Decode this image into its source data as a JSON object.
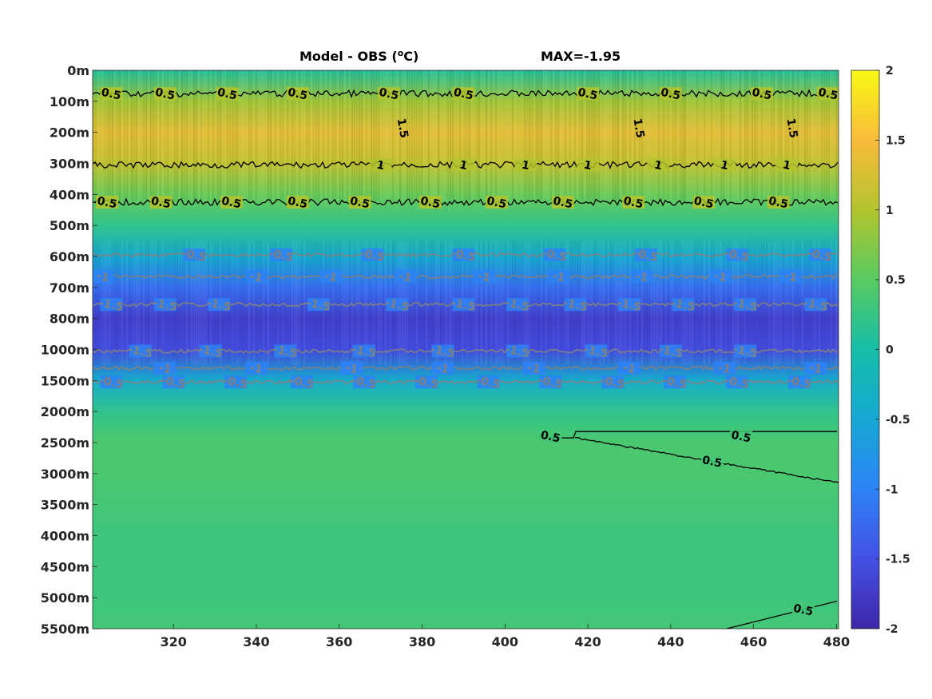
{
  "chart_data": {
    "type": "heatmap",
    "title": "Model - OBS",
    "title_unit_base": "(",
    "title_unit_sup": "o",
    "title_unit_end": "C)",
    "annotation": "MAX=-1.95",
    "x_ticks": [
      "320",
      "340",
      "360",
      "380",
      "400",
      "420",
      "440",
      "460",
      "480"
    ],
    "x_tick_values": [
      320,
      340,
      360,
      380,
      400,
      420,
      440,
      460,
      480
    ],
    "xlim": [
      300.5,
      480.5
    ],
    "y_ticks": [
      "0m",
      "100m",
      "200m",
      "300m",
      "400m",
      "500m",
      "600m",
      "700m",
      "800m",
      "1000m",
      "1500m",
      "2000m",
      "2500m",
      "3000m",
      "3500m",
      "4000m",
      "4500m",
      "5000m",
      "5500m"
    ],
    "colorbar": {
      "ticks": [
        "2",
        "1.5",
        "1",
        "0.5",
        "0",
        "-0.5",
        "-1",
        "-1.5",
        "-2"
      ],
      "tick_values": [
        2,
        1.5,
        1,
        0.5,
        0,
        -0.5,
        -1,
        -1.5,
        -2
      ],
      "range": [
        -2,
        2
      ],
      "colormap": "parula"
    },
    "depth_profile": [
      {
        "level": "0m",
        "value": 0.1
      },
      {
        "level": "100m",
        "value": 0.9
      },
      {
        "level": "200m",
        "value": 1.35
      },
      {
        "level": "300m",
        "value": 1.1
      },
      {
        "level": "400m",
        "value": 0.6
      },
      {
        "level": "500m",
        "value": 0.2
      },
      {
        "level": "600m",
        "value": -0.45
      },
      {
        "level": "700m",
        "value": -1.2
      },
      {
        "level": "800m",
        "value": -1.7
      },
      {
        "level": "1000m",
        "value": -1.55
      },
      {
        "level": "1500m",
        "value": -0.4
      },
      {
        "level": "2000m",
        "value": 0.2
      },
      {
        "level": "2500m",
        "value": 0.4
      },
      {
        "level": "3000m",
        "value": 0.4
      },
      {
        "level": "3500m",
        "value": 0.35
      },
      {
        "level": "4000m",
        "value": 0.3
      },
      {
        "level": "4500m",
        "value": 0.3
      },
      {
        "level": "5000m",
        "value": 0.3
      },
      {
        "level": "5500m",
        "value": 0.35
      }
    ],
    "contours": [
      {
        "level_label": "0.5",
        "depth_index": 0.75,
        "color": "#000000",
        "labels_at_x": [
          305,
          318,
          333,
          350,
          372,
          390,
          420,
          440,
          462,
          478
        ]
      },
      {
        "level_label": "1",
        "depth_index": 3.05,
        "color": "#000000",
        "labels_at_x": [
          370,
          390,
          405,
          420,
          437,
          453,
          468
        ]
      },
      {
        "level_label": "0.5",
        "depth_index": 4.25,
        "color": "#000000",
        "labels_at_x": [
          304,
          317,
          334,
          350,
          365,
          382,
          398,
          414,
          431,
          448,
          466
        ]
      },
      {
        "level_label": "-0.5",
        "depth_index": 5.95,
        "color": "#808080",
        "labels_at_x": [
          325,
          346,
          368,
          390,
          412,
          434,
          456,
          476
        ]
      },
      {
        "level_label": "-1",
        "depth_index": 6.65,
        "color": "#808080",
        "labels_at_x": [
          303,
          340,
          358,
          376,
          395,
          413,
          433,
          452,
          469
        ]
      },
      {
        "level_label": "-1.5",
        "depth_index": 7.55,
        "color": "#808080",
        "labels_at_x": [
          305,
          318,
          331,
          355,
          374,
          390,
          403,
          417,
          430,
          443,
          458,
          475
        ]
      },
      {
        "level_label": "-1.5",
        "depth_index": 9.05,
        "color": "#808080",
        "labels_at_x": [
          312,
          329,
          347,
          366,
          385,
          403,
          422,
          440,
          458
        ]
      },
      {
        "level_label": "-1",
        "depth_index": 9.6,
        "color": "#808080",
        "labels_at_x": [
          318,
          340,
          363,
          385,
          407,
          430,
          453,
          475
        ]
      },
      {
        "level_label": "-0.5",
        "depth_index": 10.05,
        "color": "#808080",
        "labels_at_x": [
          305,
          320,
          335,
          351,
          366,
          381,
          396,
          411,
          426,
          441,
          456,
          471
        ]
      },
      {
        "level_label": "0.5",
        "depth_index": 11.8,
        "color": "#000000",
        "labels_at_x": [
          411,
          457
        ]
      },
      {
        "level_label": "0.5",
        "depth_index": 12.7,
        "color": "#000000",
        "labels_at_x": [
          450
        ]
      },
      {
        "level_label": "0.5",
        "depth_index": 17.5,
        "color": "#000000",
        "labels_at_x": [
          472
        ]
      },
      {
        "level_label": "1.5",
        "depth_index": 1.55,
        "color": "#000000",
        "labels_at_x": [
          375,
          432,
          469
        ]
      }
    ]
  }
}
